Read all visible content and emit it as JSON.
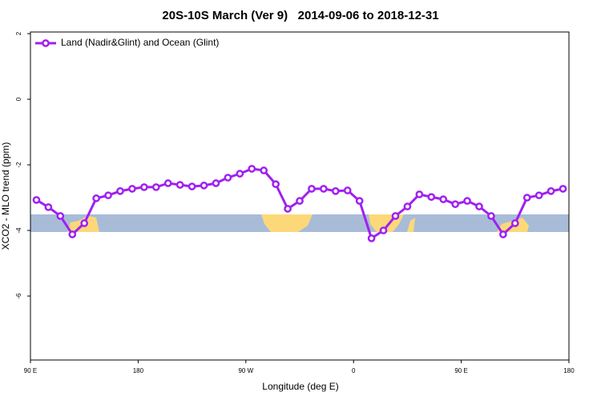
{
  "chart_data": {
    "type": "line",
    "title": "20S-10S March (Ver 9)   2014-09-06 to 2018-12-31",
    "x_label": "Longitude (deg E)",
    "y_label": "XCO2 - MLO trend (ppm)",
    "x": [
      95,
      105,
      115,
      125,
      135,
      145,
      155,
      165,
      175,
      185,
      195,
      205,
      215,
      225,
      235,
      245,
      255,
      265,
      275,
      285,
      295,
      305,
      315,
      325,
      335,
      345,
      355,
      365,
      375,
      385,
      395,
      405,
      415,
      425,
      435,
      445,
      455,
      465,
      475,
      485,
      495,
      505,
      515,
      525,
      535
    ],
    "series": [
      {
        "name": "Land (Nadir&Glint) and Ocean (Glint)",
        "color": "#a020f0",
        "values": [
          -3.07,
          -3.29,
          -3.56,
          -4.12,
          -3.78,
          -3.02,
          -2.93,
          -2.8,
          -2.73,
          -2.68,
          -2.68,
          -2.56,
          -2.61,
          -2.66,
          -2.63,
          -2.56,
          -2.39,
          -2.27,
          -2.12,
          -2.17,
          -2.59,
          -3.34,
          -3.1,
          -2.73,
          -2.73,
          -2.8,
          -2.78,
          -3.1,
          -4.24,
          -4.0,
          -3.56,
          -3.27,
          -2.9,
          -2.98,
          -3.05,
          -3.2,
          -3.1,
          -3.27,
          -3.56,
          -4.12,
          -3.78,
          -3.0,
          -2.93,
          -2.8,
          -2.73
        ]
      }
    ],
    "xlim": [
      90,
      540
    ],
    "xticks": [
      {
        "value": 90,
        "label": "90 E"
      },
      180,
      {
        "value": 270,
        "label": "90 W"
      },
      {
        "value": 360,
        "label": "0"
      },
      {
        "value": 450,
        "label": "90 E"
      },
      {
        "value": 540,
        "label": "180"
      }
    ],
    "ylim": [
      -7.95,
      2.05
    ],
    "yticks": [
      2,
      0,
      -2,
      -4,
      -6
    ],
    "legend": "top-left"
  }
}
